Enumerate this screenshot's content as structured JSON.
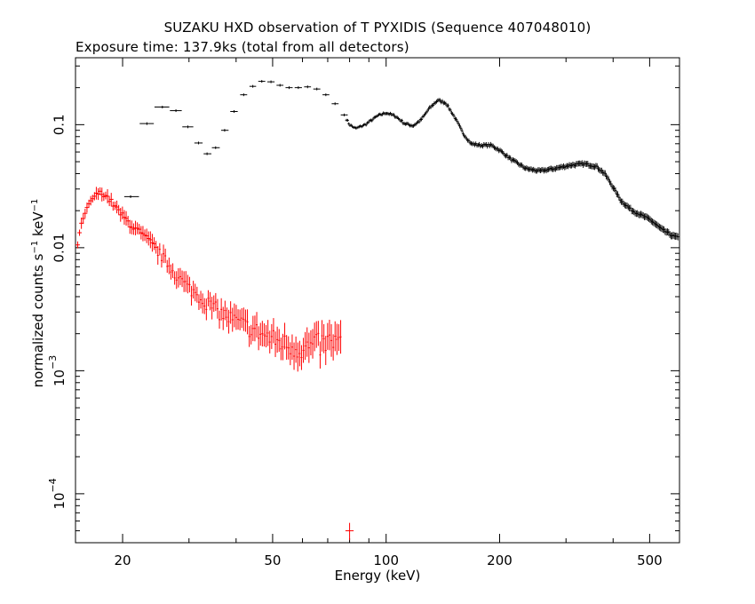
{
  "chart_data": {
    "type": "scatter",
    "title": "SUZAKU HXD observation of T PYXIDIS (Sequence 407048010)",
    "subtitle": "Exposure time: 137.9ks (total from all detectors)",
    "xlabel": "Energy (keV)",
    "ylabel": {
      "prefix": "normalized counts s",
      "sup1": "−1",
      "mid": " keV",
      "sup2": "−1"
    },
    "xscale": "log",
    "yscale": "log",
    "xlim": [
      15,
      600
    ],
    "ylim": [
      4e-05,
      0.35
    ],
    "x_ticks": [
      {
        "value": 20,
        "label": "20"
      },
      {
        "value": 50,
        "label": "50"
      },
      {
        "value": 100,
        "label": "100"
      },
      {
        "value": 200,
        "label": "200"
      },
      {
        "value": 500,
        "label": "500"
      }
    ],
    "y_ticks": [
      {
        "value": 0.1,
        "label": "0.1",
        "kind": "plain"
      },
      {
        "value": 0.01,
        "label": "0.01",
        "kind": "plain"
      },
      {
        "value": 0.001,
        "base": "10",
        "exp": "−3",
        "kind": "power"
      },
      {
        "value": 0.0001,
        "base": "10",
        "exp": "−4",
        "kind": "power"
      }
    ],
    "grid": false,
    "legend": "none",
    "series": [
      {
        "color": "#000000",
        "style": "crosses",
        "points": [
          {
            "x": 21,
            "y": 0.026,
            "xlo": 20.2,
            "xhi": 22.1
          },
          {
            "x": 23.2,
            "y": 0.102,
            "xlo": 22.2,
            "xhi": 24.2
          },
          {
            "x": 25.5,
            "y": 0.139,
            "xlo": 24.3,
            "xhi": 26.6
          },
          {
            "x": 27.7,
            "y": 0.13,
            "xlo": 26.7,
            "xhi": 28.7
          },
          {
            "x": 29.8,
            "y": 0.096,
            "xlo": 28.8,
            "xhi": 30.8
          },
          {
            "x": 31.8,
            "y": 0.071,
            "xlo": 31.0,
            "xhi": 32.6
          },
          {
            "x": 33.5,
            "y": 0.058,
            "xlo": 32.8,
            "xhi": 34.4
          },
          {
            "x": 35.3,
            "y": 0.065,
            "xlo": 34.5,
            "xhi": 36.2
          },
          {
            "x": 37.3,
            "y": 0.09,
            "xlo": 36.5,
            "xhi": 38.2
          },
          {
            "x": 39.5,
            "y": 0.128,
            "xlo": 38.6,
            "xhi": 40.4
          },
          {
            "x": 41.9,
            "y": 0.175,
            "xlo": 41.0,
            "xhi": 42.8
          },
          {
            "x": 44.3,
            "y": 0.205,
            "xlo": 43.4,
            "xhi": 45.2
          },
          {
            "x": 46.8,
            "y": 0.225,
            "xlo": 45.8,
            "xhi": 47.8
          },
          {
            "x": 49.5,
            "y": 0.223,
            "xlo": 48.4,
            "xhi": 50.6
          },
          {
            "x": 52.3,
            "y": 0.209,
            "xlo": 51.2,
            "xhi": 53.4
          },
          {
            "x": 55.3,
            "y": 0.2,
            "xlo": 54.1,
            "xhi": 56.5
          },
          {
            "x": 58.5,
            "y": 0.2,
            "xlo": 57.2,
            "xhi": 59.8
          },
          {
            "x": 61.9,
            "y": 0.203,
            "xlo": 60.6,
            "xhi": 63.2
          },
          {
            "x": 65.5,
            "y": 0.195,
            "xlo": 64.1,
            "xhi": 66.9
          },
          {
            "x": 69.2,
            "y": 0.175,
            "xlo": 67.8,
            "xhi": 70.7
          },
          {
            "x": 73.2,
            "y": 0.148,
            "xlo": 71.7,
            "xhi": 74.8
          },
          {
            "x": 77.4,
            "y": 0.12,
            "xlo": 75.8,
            "xhi": 79.1
          }
        ]
      },
      {
        "color": "#ff0000",
        "style": "crosses",
        "points": [
          {
            "x": 80,
            "y": 5e-05,
            "xlo": 78,
            "xhi": 82,
            "ylo": 4.2e-05,
            "yhi": 5.8e-05
          }
        ]
      }
    ]
  }
}
